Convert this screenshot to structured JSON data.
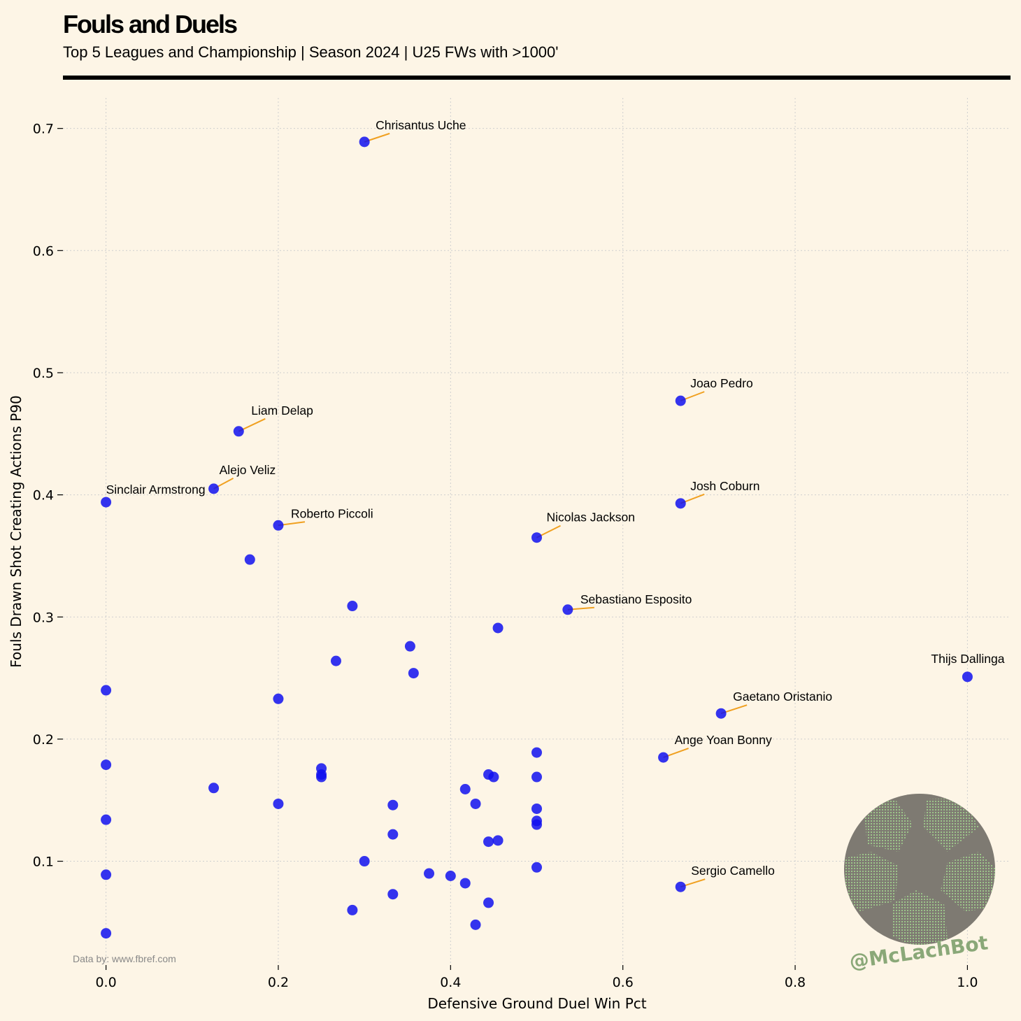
{
  "header": {
    "title": "Fouls and Duels",
    "subtitle": "Top 5 Leagues and Championship | Season 2024 | U25 FWs with >1000'"
  },
  "footer": {
    "credit": "Data by: www.fbref.com",
    "watermark": "@McLachBot"
  },
  "colors": {
    "point": "#1010ee",
    "leader": "#f0a020",
    "background": "#fdf5e6",
    "watermark": "#8aa878"
  },
  "chart_data": {
    "type": "scatter",
    "title": "Fouls and Duels",
    "xlabel": "Defensive Ground Duel Win Pct",
    "ylabel": "Fouls Drawn Shot Creating Actions P90",
    "xlim": [
      -0.05,
      1.05
    ],
    "ylim": [
      0.015,
      0.725
    ],
    "xticks": [
      0.0,
      0.2,
      0.4,
      0.6,
      0.8,
      1.0
    ],
    "xtick_labels": [
      "0.0",
      "0.2",
      "0.4",
      "0.6",
      "0.8",
      "1.0"
    ],
    "yticks": [
      0.1,
      0.2,
      0.3,
      0.4,
      0.5,
      0.6,
      0.7
    ],
    "ytick_labels": [
      "0.1",
      "0.2",
      "0.3",
      "0.4",
      "0.5",
      "0.6",
      "0.7"
    ],
    "grid": true,
    "labeled_points": [
      {
        "name": "Chrisantus Uche",
        "x": 0.3,
        "y": 0.689
      },
      {
        "name": "Joao Pedro",
        "x": 0.667,
        "y": 0.477
      },
      {
        "name": "Liam Delap",
        "x": 0.154,
        "y": 0.452
      },
      {
        "name": "Alejo Veliz",
        "x": 0.125,
        "y": 0.405
      },
      {
        "name": "Sinclair Armstrong",
        "x": 0.0,
        "y": 0.394
      },
      {
        "name": "Josh Coburn",
        "x": 0.667,
        "y": 0.393
      },
      {
        "name": "Roberto Piccoli",
        "x": 0.2,
        "y": 0.375
      },
      {
        "name": "Nicolas Jackson",
        "x": 0.5,
        "y": 0.365
      },
      {
        "name": "Sebastiano Esposito",
        "x": 0.536,
        "y": 0.306
      },
      {
        "name": "Thijs Dallinga",
        "x": 1.0,
        "y": 0.251
      },
      {
        "name": "Gaetano Oristanio",
        "x": 0.714,
        "y": 0.221
      },
      {
        "name": "Ange Yoan Bonny",
        "x": 0.647,
        "y": 0.185
      },
      {
        "name": "Sergio Camello",
        "x": 0.667,
        "y": 0.079
      }
    ],
    "points": [
      {
        "x": 0.167,
        "y": 0.347
      },
      {
        "x": 0.286,
        "y": 0.309
      },
      {
        "x": 0.455,
        "y": 0.291
      },
      {
        "x": 0.353,
        "y": 0.276
      },
      {
        "x": 0.267,
        "y": 0.264
      },
      {
        "x": 0.357,
        "y": 0.254
      },
      {
        "x": 0.0,
        "y": 0.24
      },
      {
        "x": 0.2,
        "y": 0.233
      },
      {
        "x": 0.5,
        "y": 0.189
      },
      {
        "x": 0.0,
        "y": 0.179
      },
      {
        "x": 0.25,
        "y": 0.176
      },
      {
        "x": 0.25,
        "y": 0.171
      },
      {
        "x": 0.25,
        "y": 0.169
      },
      {
        "x": 0.444,
        "y": 0.171
      },
      {
        "x": 0.45,
        "y": 0.169
      },
      {
        "x": 0.5,
        "y": 0.169
      },
      {
        "x": 0.125,
        "y": 0.16
      },
      {
        "x": 0.417,
        "y": 0.159
      },
      {
        "x": 0.2,
        "y": 0.147
      },
      {
        "x": 0.333,
        "y": 0.146
      },
      {
        "x": 0.429,
        "y": 0.147
      },
      {
        "x": 0.5,
        "y": 0.143
      },
      {
        "x": 0.0,
        "y": 0.134
      },
      {
        "x": 0.5,
        "y": 0.133
      },
      {
        "x": 0.5,
        "y": 0.13
      },
      {
        "x": 0.333,
        "y": 0.122
      },
      {
        "x": 0.444,
        "y": 0.116
      },
      {
        "x": 0.455,
        "y": 0.117
      },
      {
        "x": 0.3,
        "y": 0.1
      },
      {
        "x": 0.5,
        "y": 0.095
      },
      {
        "x": 0.0,
        "y": 0.089
      },
      {
        "x": 0.375,
        "y": 0.09
      },
      {
        "x": 0.4,
        "y": 0.088
      },
      {
        "x": 0.417,
        "y": 0.082
      },
      {
        "x": 0.333,
        "y": 0.073
      },
      {
        "x": 0.444,
        "y": 0.066
      },
      {
        "x": 0.286,
        "y": 0.06
      },
      {
        "x": 0.429,
        "y": 0.048
      },
      {
        "x": 0.0,
        "y": 0.041
      }
    ]
  }
}
